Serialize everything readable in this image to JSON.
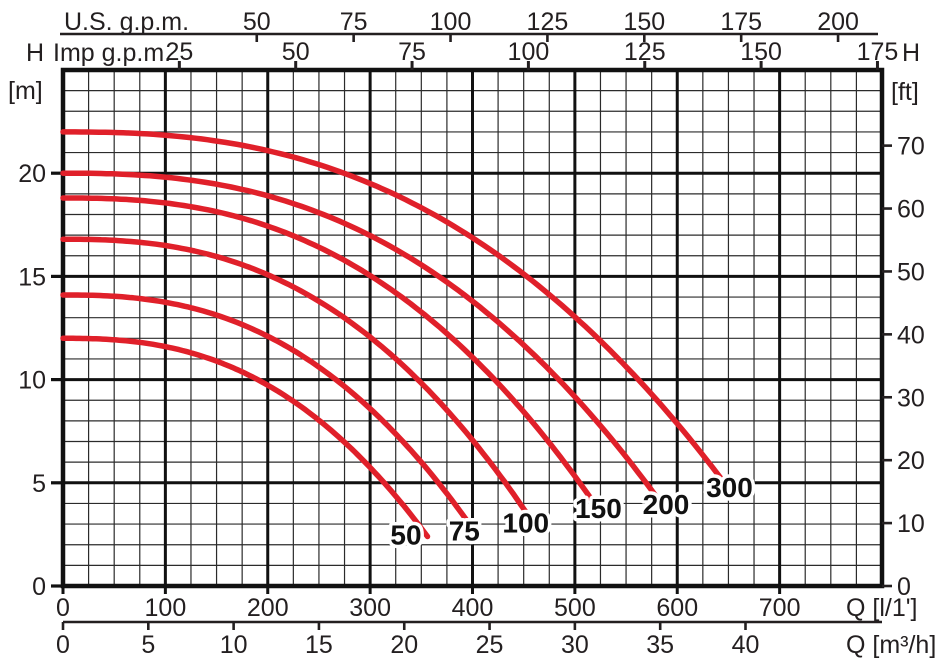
{
  "chart_data": {
    "type": "line",
    "description": "Pump head-flow performance curves, six impeller sizes",
    "x_range_l1min": [
      0,
      800
    ],
    "y_range_m": [
      0,
      25
    ],
    "grid": {
      "minor_x_l1min": 25,
      "major_x_l1min": 100,
      "minor_y_m": 1,
      "major_y_m": 5,
      "grid_on": true
    },
    "x_axes": [
      {
        "id": "us_gpm",
        "label": "U.S. g.p.m.",
        "ticks": [
          50,
          75,
          100,
          125,
          150,
          175,
          200
        ],
        "l1min_per_unit": 3.7854
      },
      {
        "id": "imp_gpm",
        "label": "Imp g.p.m.",
        "ticks": [
          25,
          50,
          75,
          100,
          125,
          150,
          175
        ],
        "l1min_per_unit": 4.5461
      },
      {
        "id": "l_per_min",
        "label": "Q [l/1']",
        "ticks": [
          0,
          100,
          200,
          300,
          400,
          500,
          600,
          700
        ],
        "l1min_per_unit": 1
      },
      {
        "id": "m3_per_h",
        "label": "Q [m³/h]",
        "ticks": [
          0,
          5,
          10,
          15,
          20,
          25,
          30,
          35,
          40
        ],
        "l1min_per_unit": 16.6667
      }
    ],
    "y_axes": [
      {
        "id": "metres",
        "symbol": "H",
        "unit": "[m]",
        "ticks": [
          0,
          5,
          10,
          15,
          20
        ],
        "m_per_unit": 1,
        "side": "left"
      },
      {
        "id": "feet",
        "symbol": "H",
        "unit": "[ft]",
        "ticks": [
          0,
          10,
          20,
          30,
          40,
          50,
          60,
          70
        ],
        "m_per_unit": 0.3048,
        "side": "right"
      }
    ],
    "curve_color": "#e0202a",
    "series": [
      {
        "name": "50",
        "h0_m": 12.0,
        "q_end_l1min": 356,
        "h_end_m": 2.4,
        "exp": 2.5,
        "label_at_q_h": [
          335,
          2.0
        ],
        "points_q_h": [
          [
            0,
            12.0
          ],
          [
            50,
            11.9
          ],
          [
            100,
            11.6
          ],
          [
            150,
            10.9
          ],
          [
            200,
            9.7
          ],
          [
            250,
            8.0
          ],
          [
            300,
            5.7
          ],
          [
            356,
            2.4
          ]
        ]
      },
      {
        "name": "75",
        "h0_m": 14.1,
        "q_end_l1min": 397,
        "h_end_m": 3.0,
        "exp": 2.5,
        "label_at_q_h": [
          392,
          2.2
        ],
        "points_q_h": [
          [
            0,
            14.1
          ],
          [
            100,
            13.7
          ],
          [
            150,
            13.1
          ],
          [
            200,
            12.1
          ],
          [
            250,
            10.6
          ],
          [
            300,
            8.6
          ],
          [
            350,
            6.0
          ],
          [
            397,
            3.0
          ]
        ]
      },
      {
        "name": "100",
        "h0_m": 16.8,
        "q_end_l1min": 456,
        "h_end_m": 3.3,
        "exp": 2.5,
        "label_at_q_h": [
          452,
          2.6
        ],
        "points_q_h": [
          [
            0,
            16.8
          ],
          [
            100,
            16.5
          ],
          [
            200,
            15.1
          ],
          [
            250,
            13.8
          ],
          [
            300,
            12.1
          ],
          [
            350,
            9.8
          ],
          [
            400,
            7.1
          ],
          [
            456,
            3.3
          ]
        ]
      },
      {
        "name": "150",
        "h0_m": 18.8,
        "q_end_l1min": 519,
        "h_end_m": 4.0,
        "exp": 2.5,
        "label_at_q_h": [
          523,
          3.3
        ],
        "points_q_h": [
          [
            0,
            18.8
          ],
          [
            100,
            18.6
          ],
          [
            200,
            17.4
          ],
          [
            300,
            15.0
          ],
          [
            400,
            11.1
          ],
          [
            450,
            8.4
          ],
          [
            519,
            4.0
          ]
        ]
      },
      {
        "name": "200",
        "h0_m": 20.0,
        "q_end_l1min": 583,
        "h_end_m": 4.1,
        "exp": 2.5,
        "label_at_q_h": [
          589,
          3.5
        ],
        "points_q_h": [
          [
            0,
            20.0
          ],
          [
            100,
            19.8
          ],
          [
            200,
            18.9
          ],
          [
            300,
            17.0
          ],
          [
            400,
            13.8
          ],
          [
            500,
            9.2
          ],
          [
            583,
            4.1
          ]
        ]
      },
      {
        "name": "300",
        "h0_m": 22.0,
        "q_end_l1min": 646,
        "h_end_m": 5.0,
        "exp": 2.5,
        "label_at_q_h": [
          651,
          4.3
        ],
        "points_q_h": [
          [
            0,
            22.0
          ],
          [
            100,
            21.8
          ],
          [
            200,
            21.1
          ],
          [
            300,
            19.5
          ],
          [
            400,
            16.9
          ],
          [
            500,
            13.0
          ],
          [
            600,
            7.9
          ],
          [
            646,
            5.0
          ]
        ]
      }
    ]
  }
}
